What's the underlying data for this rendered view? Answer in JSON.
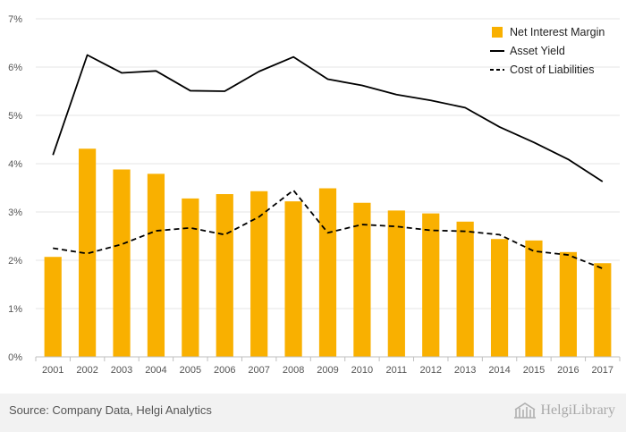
{
  "chart_data": {
    "type": "bar",
    "categories": [
      "2001",
      "2002",
      "2003",
      "2004",
      "2005",
      "2006",
      "2007",
      "2008",
      "2009",
      "2010",
      "2011",
      "2012",
      "2013",
      "2014",
      "2015",
      "2016",
      "2017"
    ],
    "ylim": [
      0,
      7
    ],
    "yticks": [
      "0%",
      "1%",
      "2%",
      "3%",
      "4%",
      "5%",
      "6%",
      "7%"
    ],
    "grid": true,
    "legend_position": "top-right",
    "series": [
      {
        "name": "Net Interest Margin",
        "kind": "bar",
        "color": "#f9b000",
        "values": [
          2.07,
          4.31,
          3.88,
          3.79,
          3.28,
          3.37,
          3.43,
          3.22,
          3.49,
          3.19,
          3.03,
          2.97,
          2.8,
          2.44,
          2.41,
          2.17,
          1.94
        ]
      },
      {
        "name": "Asset Yield",
        "kind": "line",
        "color": "#000000",
        "dash": "solid",
        "values": [
          4.18,
          6.25,
          5.88,
          5.92,
          5.51,
          5.5,
          5.91,
          6.21,
          5.75,
          5.62,
          5.43,
          5.31,
          5.16,
          4.76,
          4.44,
          4.09,
          3.63
        ]
      },
      {
        "name": "Cost of Liabilities",
        "kind": "line",
        "color": "#000000",
        "dash": "dashed",
        "values": [
          2.25,
          2.14,
          2.33,
          2.61,
          2.67,
          2.53,
          2.9,
          3.45,
          2.57,
          2.74,
          2.7,
          2.62,
          2.6,
          2.53,
          2.19,
          2.11,
          1.83
        ]
      }
    ]
  },
  "footer": {
    "source": "Source: Company Data, Helgi Analytics",
    "brand": "HelgiLibrary"
  },
  "colors": {
    "bar": "#f9b000",
    "grid": "#e6e6e6",
    "axis": "#bfbfbf",
    "footer_bg": "#f2f2f2"
  },
  "icons": {
    "brand_logo": "building-columns-icon"
  }
}
